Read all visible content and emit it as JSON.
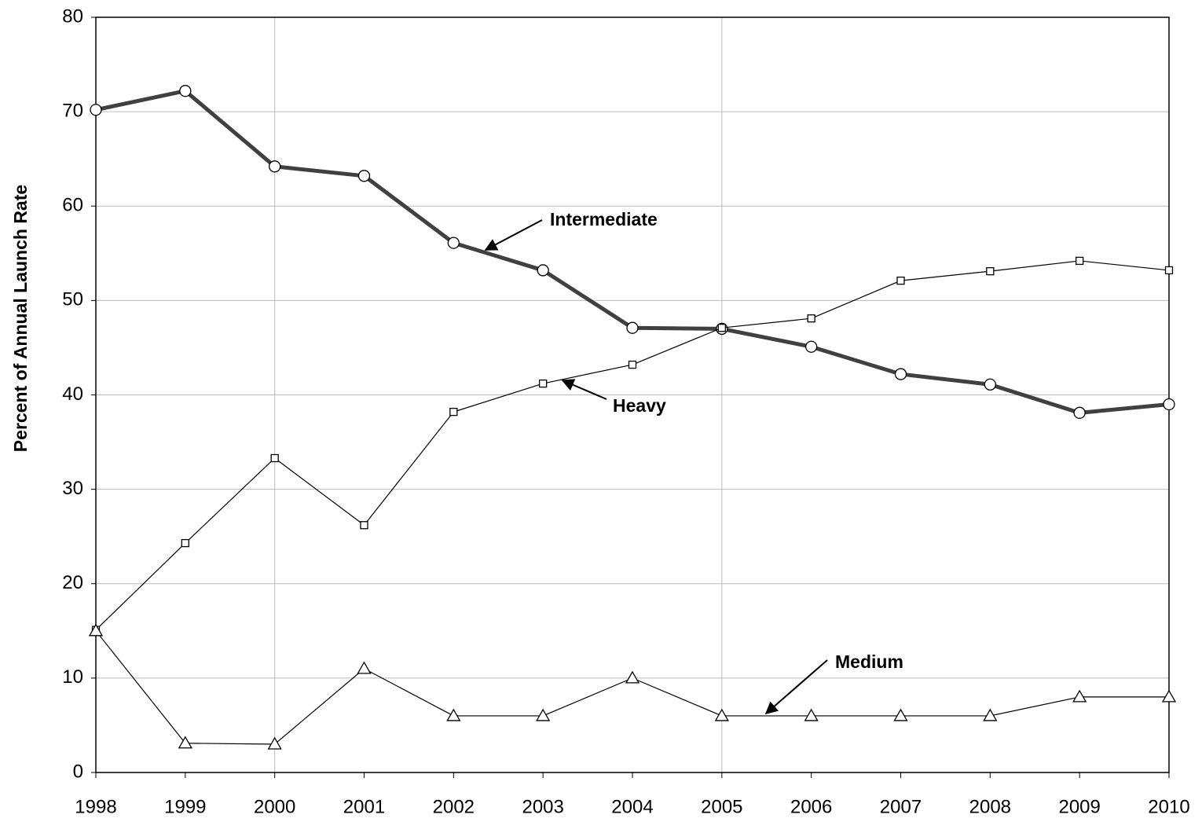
{
  "chart_data": {
    "type": "line",
    "ylabel": "Percent of Annual Launch Rate",
    "x": [
      1998,
      1999,
      2000,
      2001,
      2002,
      2003,
      2004,
      2005,
      2006,
      2007,
      2008,
      2009,
      2010
    ],
    "xlim": [
      1998,
      2010
    ],
    "xticks": [
      1998,
      1999,
      2000,
      2001,
      2002,
      2003,
      2004,
      2005,
      2006,
      2007,
      2008,
      2009,
      2010
    ],
    "xgrid": [
      2000,
      2005
    ],
    "ylim": [
      0,
      80
    ],
    "yticks": [
      0,
      10,
      20,
      30,
      40,
      50,
      60,
      70,
      80
    ],
    "grid": true,
    "series": [
      {
        "name": "Intermediate",
        "color": "#404040",
        "marker": "circle",
        "width": 5,
        "values": [
          70.2,
          72.2,
          64.2,
          63.2,
          56.1,
          53.2,
          47.1,
          47.0,
          45.1,
          42.2,
          41.1,
          38.1,
          39.0
        ]
      },
      {
        "name": "Heavy",
        "color": "#000000",
        "marker": "square",
        "width": 1.2,
        "values": [
          15.1,
          24.3,
          33.3,
          26.2,
          38.2,
          41.2,
          43.2,
          47.1,
          48.1,
          52.1,
          53.1,
          54.2,
          53.2
        ]
      },
      {
        "name": "Medium",
        "color": "#000000",
        "marker": "triangle",
        "width": 1.2,
        "values": [
          15.0,
          3.1,
          3.0,
          11.0,
          6.0,
          6.0,
          10.0,
          6.0,
          6.0,
          6.0,
          6.0,
          8.0,
          8.0
        ]
      }
    ]
  }
}
